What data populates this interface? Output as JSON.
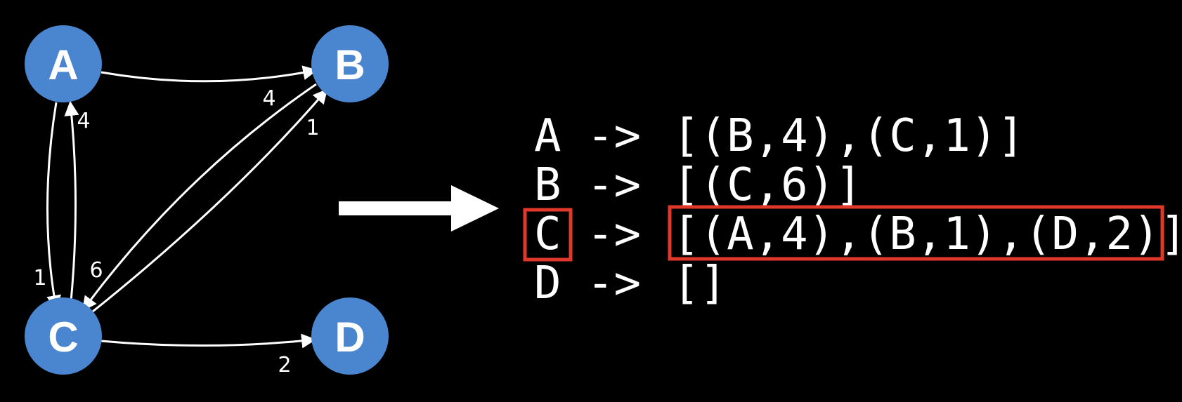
{
  "colors": {
    "background": "#000000",
    "node_fill": "#4a86cf",
    "node_text": "#ffffff",
    "edge": "#ffffff",
    "highlight": "#e0392b",
    "text": "#ffffff"
  },
  "graph": {
    "nodes": [
      {
        "id": "A",
        "label": "A"
      },
      {
        "id": "B",
        "label": "B"
      },
      {
        "id": "C",
        "label": "C"
      },
      {
        "id": "D",
        "label": "D"
      }
    ],
    "edges": [
      {
        "from": "A",
        "to": "B",
        "weight": "4"
      },
      {
        "from": "A",
        "to": "C",
        "weight": "1"
      },
      {
        "from": "B",
        "to": "C",
        "weight": "6"
      },
      {
        "from": "C",
        "to": "A",
        "weight": "4"
      },
      {
        "from": "C",
        "to": "B",
        "weight": "1"
      },
      {
        "from": "C",
        "to": "D",
        "weight": "2"
      }
    ]
  },
  "arrow_icon": "right-arrow-icon",
  "adjacency_list": [
    {
      "node": "A",
      "arrow": "->",
      "list": "[(B,4),(C,1)]",
      "highlighted": false
    },
    {
      "node": "B",
      "arrow": "->",
      "list": "[(C,6)]",
      "highlighted": false
    },
    {
      "node": "C",
      "arrow": "->",
      "list": "[(A,4),(B,1),(D,2)]",
      "highlighted": true
    },
    {
      "node": "D",
      "arrow": "->",
      "list": "[]",
      "highlighted": false
    }
  ]
}
